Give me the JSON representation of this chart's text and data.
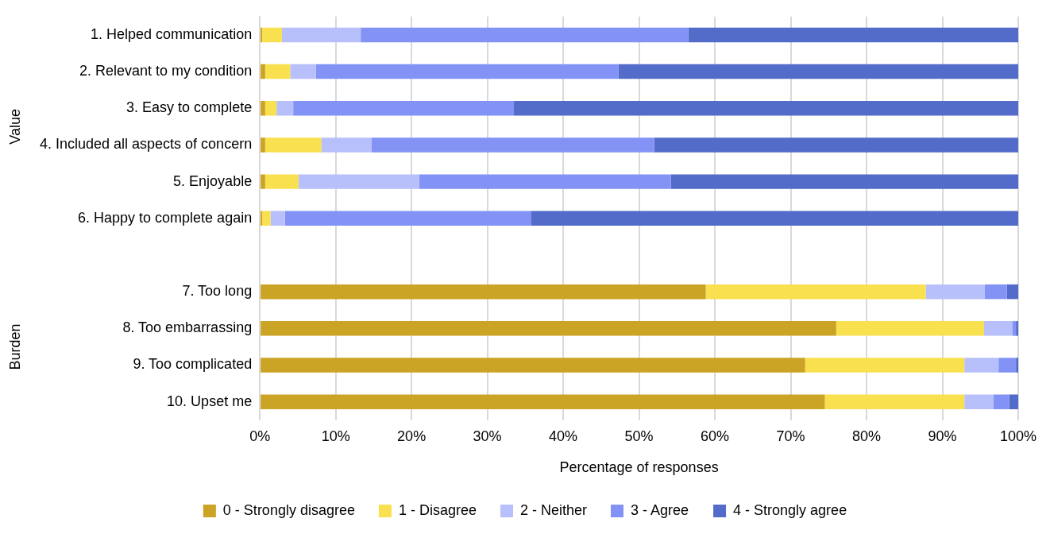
{
  "chart_data": {
    "type": "bar",
    "orientation": "horizontal",
    "stacked": true,
    "categories": [
      "1. Helped communication",
      "2. Relevant to my condition",
      "3. Easy to complete",
      "4. Included all aspects of concern",
      "5. Enjoyable",
      "6. Happy to complete again",
      null,
      "7. Too long",
      "8. Too embarrassing",
      "9. Too complicated",
      "10. Upset me"
    ],
    "series": [
      {
        "name": "0 - Strongly disagree",
        "color": "#cba325",
        "values": [
          0.3,
          0.7,
          0.7,
          0.7,
          0.7,
          0.3,
          null,
          58.8,
          76.0,
          71.9,
          74.5
        ]
      },
      {
        "name": "1 - Disagree",
        "color": "#f9e04f",
        "values": [
          2.6,
          3.3,
          1.5,
          7.4,
          4.4,
          1.1,
          null,
          29.0,
          19.5,
          21.0,
          18.4
        ]
      },
      {
        "name": "2 - Neither",
        "color": "#b7c0fa",
        "values": [
          10.4,
          3.4,
          2.2,
          6.6,
          15.9,
          1.9,
          null,
          7.8,
          3.7,
          4.5,
          3.8
        ]
      },
      {
        "name": "3 - Agree",
        "color": "#8293f5",
        "values": [
          43.2,
          39.9,
          29.1,
          37.3,
          33.2,
          32.5,
          null,
          2.9,
          0.5,
          2.3,
          2.1
        ]
      },
      {
        "name": "4 - Strongly agree",
        "color": "#536bc9",
        "values": [
          43.5,
          52.7,
          66.5,
          48.0,
          45.8,
          64.2,
          null,
          1.5,
          0.3,
          0.3,
          1.2
        ]
      }
    ],
    "xlim": [
      0,
      100
    ],
    "xticks": [
      {
        "value": 0,
        "label": "0%"
      },
      {
        "value": 10,
        "label": "10%"
      },
      {
        "value": 20,
        "label": "20%"
      },
      {
        "value": 30,
        "label": "30%"
      },
      {
        "value": 40,
        "label": "40%"
      },
      {
        "value": 50,
        "label": "50%"
      },
      {
        "value": 60,
        "label": "60%"
      },
      {
        "value": 70,
        "label": "70%"
      },
      {
        "value": 80,
        "label": "80%"
      },
      {
        "value": 90,
        "label": "90%"
      },
      {
        "value": 100,
        "label": "100%"
      }
    ],
    "xlabel": "Percentage of responses",
    "annotations": [
      "Value",
      "Burden"
    ],
    "grid": "x",
    "legend": "bottom"
  }
}
